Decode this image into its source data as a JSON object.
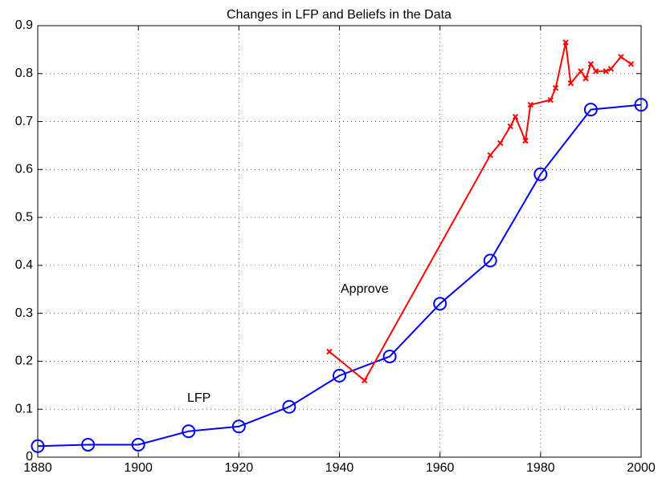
{
  "chart_data": {
    "type": "line",
    "title": "Changes in LFP and Beliefs in the Data",
    "annotations": [
      "Approve",
      "LFP"
    ],
    "series": [
      {
        "name": "LFP",
        "color": "#0000ff",
        "marker": "circle",
        "x": [
          1880,
          1890,
          1900,
          1910,
          1920,
          1930,
          1940,
          1950,
          1960,
          1970,
          1980,
          1990,
          2000
        ],
        "values": [
          0.023,
          0.026,
          0.026,
          0.054,
          0.064,
          0.105,
          0.17,
          0.21,
          0.32,
          0.41,
          0.59,
          0.725,
          0.735
        ]
      },
      {
        "name": "Approve",
        "color": "#ff0000",
        "marker": "x",
        "x": [
          1938,
          1945,
          1970,
          1972,
          1974,
          1975,
          1977,
          1978,
          1982,
          1983,
          1985,
          1986,
          1988,
          1989,
          1990,
          1991,
          1993,
          1994,
          1996,
          1998
        ],
        "values": [
          0.22,
          0.16,
          0.63,
          0.655,
          0.69,
          0.71,
          0.66,
          0.735,
          0.745,
          0.77,
          0.865,
          0.78,
          0.805,
          0.79,
          0.82,
          0.805,
          0.805,
          0.81,
          0.835,
          0.82
        ]
      }
    ],
    "xlim": [
      1880,
      2000
    ],
    "xticks": [
      1880,
      1900,
      1920,
      1940,
      1960,
      1980,
      2000
    ],
    "ylim": [
      0,
      0.9
    ],
    "yticks": [
      0,
      0.1,
      0.2,
      0.3,
      0.4,
      0.5,
      0.6,
      0.7,
      0.8,
      0.9
    ],
    "grid": true
  }
}
